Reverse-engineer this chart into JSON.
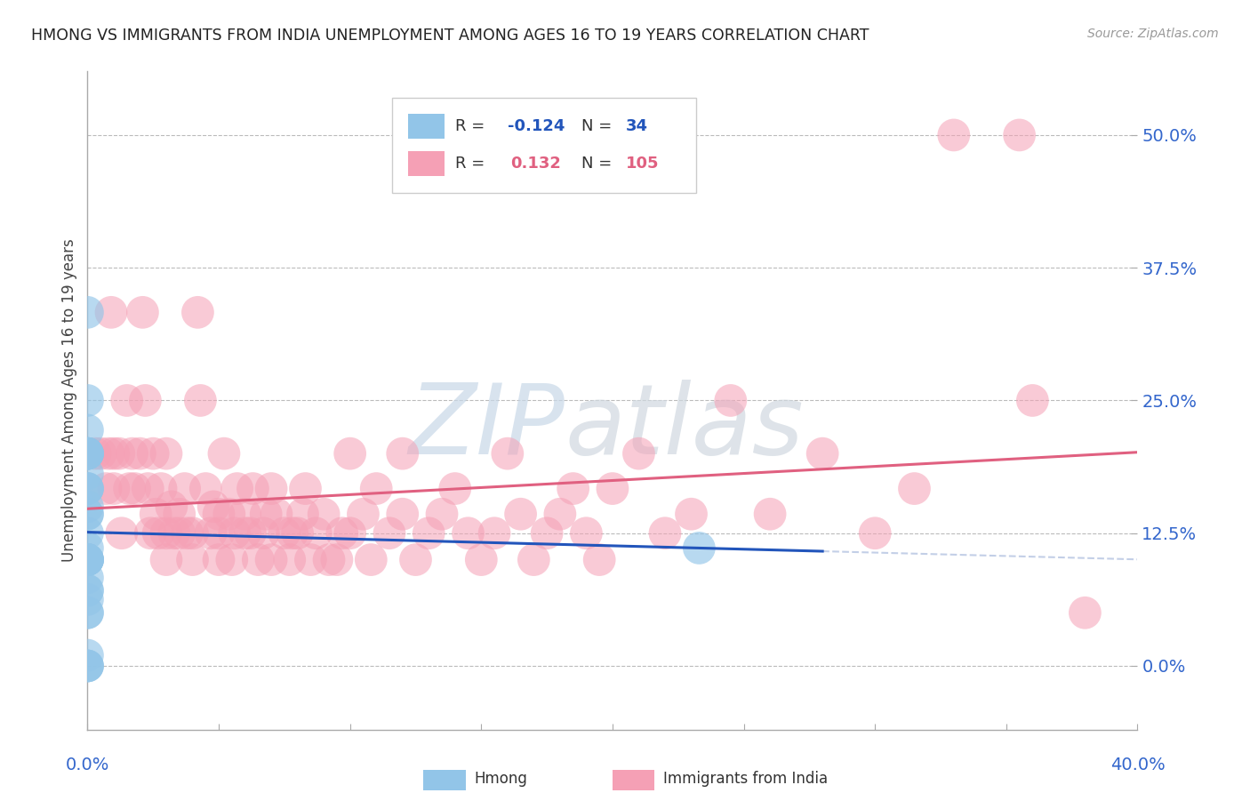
{
  "title": "HMONG VS IMMIGRANTS FROM INDIA UNEMPLOYMENT AMONG AGES 16 TO 19 YEARS CORRELATION CHART",
  "source": "Source: ZipAtlas.com",
  "ylabel": "Unemployment Among Ages 16 to 19 years",
  "ytick_labels": [
    "0.0%",
    "12.5%",
    "25.0%",
    "37.5%",
    "50.0%"
  ],
  "ytick_values": [
    0.0,
    0.125,
    0.25,
    0.375,
    0.5
  ],
  "xlim": [
    0.0,
    0.4
  ],
  "ylim": [
    -0.06,
    0.56
  ],
  "hmong_color": "#92C5E8",
  "india_color": "#F5A0B5",
  "trend_hmong_color": "#2255BB",
  "trend_india_color": "#E06080",
  "background_color": "#FFFFFF",
  "hmong_points": [
    [
      0.0,
      0.333
    ],
    [
      0.0,
      0.25
    ],
    [
      0.0,
      0.222
    ],
    [
      0.0,
      0.2
    ],
    [
      0.0,
      0.2
    ],
    [
      0.0,
      0.2
    ],
    [
      0.0,
      0.2
    ],
    [
      0.0,
      0.2
    ],
    [
      0.0,
      0.181
    ],
    [
      0.0,
      0.167
    ],
    [
      0.0,
      0.167
    ],
    [
      0.0,
      0.167
    ],
    [
      0.0,
      0.15
    ],
    [
      0.0,
      0.143
    ],
    [
      0.0,
      0.143
    ],
    [
      0.0,
      0.125
    ],
    [
      0.0,
      0.111
    ],
    [
      0.0,
      0.1
    ],
    [
      0.0,
      0.1
    ],
    [
      0.0,
      0.1
    ],
    [
      0.0,
      0.1
    ],
    [
      0.0,
      0.1
    ],
    [
      0.0,
      0.1
    ],
    [
      0.0,
      0.083
    ],
    [
      0.0,
      0.071
    ],
    [
      0.0,
      0.071
    ],
    [
      0.0,
      0.0625
    ],
    [
      0.0,
      0.05
    ],
    [
      0.0,
      0.05
    ],
    [
      0.0,
      0.0
    ],
    [
      0.0,
      0.0
    ],
    [
      0.0,
      0.0
    ],
    [
      0.233,
      0.111
    ],
    [
      0.0,
      0.01
    ]
  ],
  "india_points": [
    [
      0.003,
      0.2
    ],
    [
      0.005,
      0.2
    ],
    [
      0.007,
      0.167
    ],
    [
      0.008,
      0.2
    ],
    [
      0.009,
      0.333
    ],
    [
      0.01,
      0.167
    ],
    [
      0.01,
      0.2
    ],
    [
      0.012,
      0.2
    ],
    [
      0.013,
      0.125
    ],
    [
      0.015,
      0.25
    ],
    [
      0.016,
      0.167
    ],
    [
      0.017,
      0.2
    ],
    [
      0.018,
      0.167
    ],
    [
      0.02,
      0.2
    ],
    [
      0.021,
      0.333
    ],
    [
      0.022,
      0.25
    ],
    [
      0.023,
      0.167
    ],
    [
      0.024,
      0.125
    ],
    [
      0.025,
      0.2
    ],
    [
      0.026,
      0.143
    ],
    [
      0.027,
      0.125
    ],
    [
      0.028,
      0.167
    ],
    [
      0.03,
      0.1
    ],
    [
      0.03,
      0.125
    ],
    [
      0.03,
      0.2
    ],
    [
      0.032,
      0.15
    ],
    [
      0.033,
      0.125
    ],
    [
      0.035,
      0.125
    ],
    [
      0.035,
      0.143
    ],
    [
      0.037,
      0.167
    ],
    [
      0.038,
      0.125
    ],
    [
      0.04,
      0.1
    ],
    [
      0.04,
      0.125
    ],
    [
      0.042,
      0.333
    ],
    [
      0.043,
      0.25
    ],
    [
      0.045,
      0.167
    ],
    [
      0.047,
      0.125
    ],
    [
      0.048,
      0.15
    ],
    [
      0.05,
      0.1
    ],
    [
      0.05,
      0.125
    ],
    [
      0.05,
      0.143
    ],
    [
      0.052,
      0.2
    ],
    [
      0.054,
      0.143
    ],
    [
      0.055,
      0.1
    ],
    [
      0.056,
      0.125
    ],
    [
      0.057,
      0.167
    ],
    [
      0.06,
      0.125
    ],
    [
      0.06,
      0.143
    ],
    [
      0.062,
      0.125
    ],
    [
      0.063,
      0.167
    ],
    [
      0.065,
      0.1
    ],
    [
      0.067,
      0.125
    ],
    [
      0.068,
      0.143
    ],
    [
      0.07,
      0.1
    ],
    [
      0.07,
      0.167
    ],
    [
      0.072,
      0.143
    ],
    [
      0.075,
      0.125
    ],
    [
      0.077,
      0.1
    ],
    [
      0.078,
      0.125
    ],
    [
      0.08,
      0.125
    ],
    [
      0.082,
      0.143
    ],
    [
      0.083,
      0.167
    ],
    [
      0.085,
      0.1
    ],
    [
      0.087,
      0.125
    ],
    [
      0.09,
      0.143
    ],
    [
      0.092,
      0.1
    ],
    [
      0.095,
      0.1
    ],
    [
      0.097,
      0.125
    ],
    [
      0.1,
      0.2
    ],
    [
      0.1,
      0.125
    ],
    [
      0.105,
      0.143
    ],
    [
      0.108,
      0.1
    ],
    [
      0.11,
      0.167
    ],
    [
      0.115,
      0.125
    ],
    [
      0.12,
      0.143
    ],
    [
      0.12,
      0.2
    ],
    [
      0.125,
      0.1
    ],
    [
      0.13,
      0.125
    ],
    [
      0.135,
      0.143
    ],
    [
      0.14,
      0.167
    ],
    [
      0.145,
      0.125
    ],
    [
      0.15,
      0.1
    ],
    [
      0.155,
      0.125
    ],
    [
      0.16,
      0.2
    ],
    [
      0.165,
      0.143
    ],
    [
      0.17,
      0.1
    ],
    [
      0.175,
      0.125
    ],
    [
      0.18,
      0.143
    ],
    [
      0.185,
      0.167
    ],
    [
      0.19,
      0.125
    ],
    [
      0.195,
      0.1
    ],
    [
      0.2,
      0.167
    ],
    [
      0.21,
      0.2
    ],
    [
      0.22,
      0.125
    ],
    [
      0.23,
      0.143
    ],
    [
      0.245,
      0.25
    ],
    [
      0.26,
      0.143
    ],
    [
      0.28,
      0.2
    ],
    [
      0.3,
      0.125
    ],
    [
      0.315,
      0.167
    ],
    [
      0.33,
      0.5
    ],
    [
      0.355,
      0.5
    ],
    [
      0.36,
      0.25
    ],
    [
      0.38,
      0.05
    ]
  ]
}
